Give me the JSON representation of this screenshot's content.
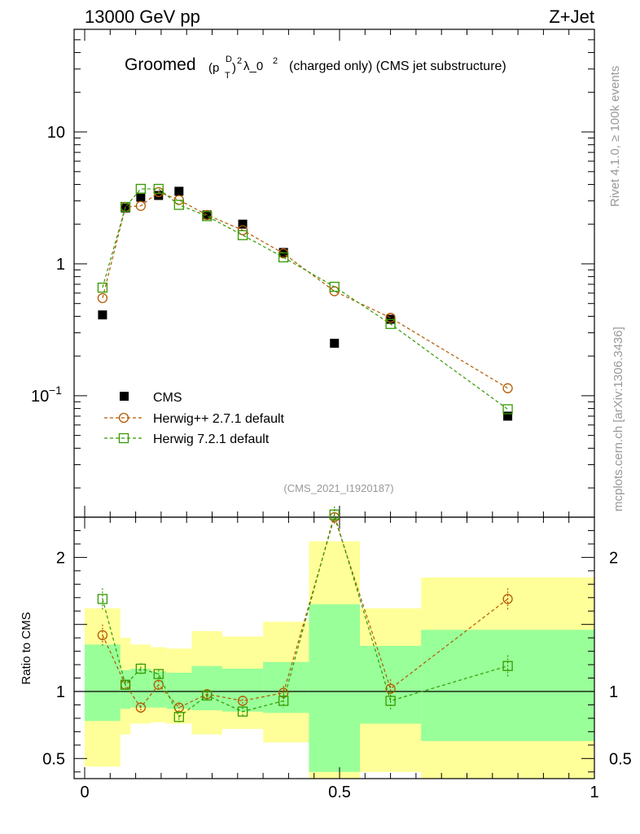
{
  "header": {
    "left_label": "13000 GeV pp",
    "right_label": "Z+Jet"
  },
  "plot_title": {
    "word": "Groomed",
    "symbol_p": "(p",
    "symbol_sup": "D",
    "symbol_sub": "T",
    "symbol_close": ")",
    "symbol_power": "2",
    "symbol_lambda": "λ_0",
    "symbol_power2": "2",
    "suffix": "(charged only) (CMS jet substructure)"
  },
  "side_labels": {
    "rivet": "Rivet 4.1.0, ≥ 100k events",
    "mcplots": "mcplots.cern.ch [arXiv:1306.3436]"
  },
  "analysis_id": "(CMS_2021_I1920187)",
  "colors": {
    "data": "#000000",
    "herwigpp": "#b35900",
    "herwig7": "#339a00",
    "band_outer": "#ffff99",
    "band_inner": "#99ff99"
  },
  "chart_data": [
    {
      "type": "scatter",
      "panel": "main",
      "yscale": "log",
      "xlim": [
        0,
        1
      ],
      "ylim": [
        0.012,
        60
      ],
      "ytick_labels": [
        {
          "value": 10,
          "text": "10"
        },
        {
          "value": 1,
          "text": "1"
        },
        {
          "value": 0.1,
          "base": "10",
          "exp": "−1"
        }
      ],
      "legend": [
        "CMS",
        "Herwig++ 2.7.1 default",
        "Herwig 7.2.1 default"
      ],
      "series": [
        {
          "name": "CMS",
          "style": "square-filled",
          "x": [
            0.035,
            0.08,
            0.11,
            0.145,
            0.185,
            0.24,
            0.31,
            0.39,
            0.49,
            0.6,
            0.83
          ],
          "y": [
            0.41,
            2.65,
            3.2,
            3.3,
            3.55,
            2.35,
            2.0,
            1.22,
            0.25,
            0.38,
            0.07
          ]
        },
        {
          "name": "Herwig++ 2.7.1 default",
          "style": "circle-open-dashed",
          "x": [
            0.035,
            0.08,
            0.11,
            0.145,
            0.185,
            0.24,
            0.31,
            0.39,
            0.49,
            0.6,
            0.83
          ],
          "y": [
            0.55,
            2.7,
            2.75,
            3.5,
            3.05,
            2.35,
            1.8,
            1.2,
            0.62,
            0.39,
            0.114
          ]
        },
        {
          "name": "Herwig 7.2.1 default",
          "style": "square-open-dashed",
          "x": [
            0.035,
            0.08,
            0.11,
            0.145,
            0.185,
            0.24,
            0.31,
            0.39,
            0.49,
            0.6,
            0.83
          ],
          "y": [
            0.66,
            2.7,
            3.7,
            3.7,
            2.8,
            2.3,
            1.65,
            1.12,
            0.67,
            0.35,
            0.079
          ]
        }
      ]
    },
    {
      "type": "line",
      "panel": "ratio",
      "ylabel": "Ratio to CMS",
      "xlim": [
        0,
        1
      ],
      "ylim": [
        0.35,
        2.3
      ],
      "xtick_labels": [
        {
          "value": 0,
          "text": "0"
        },
        {
          "value": 0.5,
          "text": "0.5"
        },
        {
          "value": 1,
          "text": "1"
        }
      ],
      "ytick_labels": [
        {
          "value": 2,
          "text": "2"
        },
        {
          "value": 1,
          "text": "1"
        },
        {
          "value": 0.5,
          "text": "0.5"
        }
      ],
      "bands": [
        {
          "x0": 0.0,
          "x1": 0.07,
          "outer": [
            0.44,
            1.62
          ],
          "inner": [
            0.78,
            1.35
          ]
        },
        {
          "x0": 0.07,
          "x1": 0.09,
          "outer": [
            0.68,
            1.4
          ],
          "inner": [
            0.87,
            1.16
          ]
        },
        {
          "x0": 0.09,
          "x1": 0.13,
          "outer": [
            0.76,
            1.35
          ],
          "inner": [
            0.88,
            1.17
          ]
        },
        {
          "x0": 0.13,
          "x1": 0.16,
          "outer": [
            0.77,
            1.33
          ],
          "inner": [
            0.88,
            1.15
          ]
        },
        {
          "x0": 0.16,
          "x1": 0.21,
          "outer": [
            0.76,
            1.32
          ],
          "inner": [
            0.87,
            1.14
          ]
        },
        {
          "x0": 0.21,
          "x1": 0.27,
          "outer": [
            0.68,
            1.45
          ],
          "inner": [
            0.86,
            1.19
          ]
        },
        {
          "x0": 0.27,
          "x1": 0.35,
          "outer": [
            0.72,
            1.41
          ],
          "inner": [
            0.85,
            1.17
          ]
        },
        {
          "x0": 0.35,
          "x1": 0.44,
          "outer": [
            0.62,
            1.52
          ],
          "inner": [
            0.84,
            1.22
          ]
        },
        {
          "x0": 0.44,
          "x1": 0.54,
          "outer": [
            0.35,
            2.12
          ],
          "inner": [
            0.4,
            1.65
          ]
        },
        {
          "x0": 0.54,
          "x1": 0.66,
          "outer": [
            0.4,
            1.62
          ],
          "inner": [
            0.76,
            1.34
          ]
        },
        {
          "x0": 0.66,
          "x1": 1.0,
          "outer": [
            0.35,
            1.85
          ],
          "inner": [
            0.63,
            1.46
          ]
        }
      ],
      "series": [
        {
          "name": "Herwig++ 2.7.1 default",
          "x": [
            0.035,
            0.08,
            0.11,
            0.145,
            0.185,
            0.24,
            0.31,
            0.39,
            0.49,
            0.6,
            0.83
          ],
          "y": [
            1.42,
            1.05,
            0.88,
            1.05,
            0.88,
            0.98,
            0.93,
            0.99,
            2.3,
            1.02,
            1.69
          ],
          "err": [
            0.08,
            0.03,
            0.04,
            0.03,
            0.03,
            0.03,
            0.04,
            0.05,
            0.06,
            0.07,
            0.08
          ]
        },
        {
          "name": "Herwig 7.2.1 default",
          "x": [
            0.035,
            0.08,
            0.11,
            0.145,
            0.185,
            0.24,
            0.31,
            0.39,
            0.49,
            0.6,
            0.83
          ],
          "y": [
            1.69,
            1.05,
            1.17,
            1.13,
            0.81,
            0.97,
            0.85,
            0.93,
            2.32,
            0.93,
            1.19
          ],
          "err": [
            0.08,
            0.03,
            0.04,
            0.03,
            0.04,
            0.03,
            0.03,
            0.05,
            0.06,
            0.07,
            0.08
          ]
        }
      ]
    }
  ]
}
